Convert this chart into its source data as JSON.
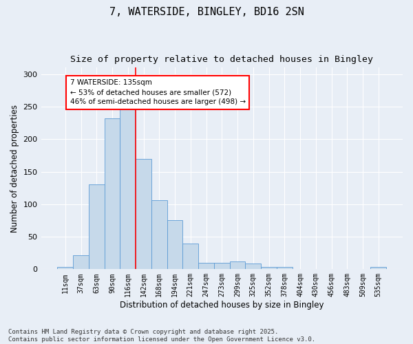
{
  "title1": "7, WATERSIDE, BINGLEY, BD16 2SN",
  "title2": "Size of property relative to detached houses in Bingley",
  "xlabel": "Distribution of detached houses by size in Bingley",
  "ylabel": "Number of detached properties",
  "categories": [
    "11sqm",
    "37sqm",
    "63sqm",
    "90sqm",
    "116sqm",
    "142sqm",
    "168sqm",
    "194sqm",
    "221sqm",
    "247sqm",
    "273sqm",
    "299sqm",
    "325sqm",
    "352sqm",
    "378sqm",
    "404sqm",
    "430sqm",
    "456sqm",
    "483sqm",
    "509sqm",
    "535sqm"
  ],
  "values": [
    4,
    21,
    130,
    232,
    253,
    170,
    106,
    76,
    40,
    10,
    10,
    12,
    9,
    4,
    4,
    0,
    0,
    0,
    0,
    0,
    4
  ],
  "bar_color": "#c6d9ea",
  "bar_edge_color": "#5b9bd5",
  "vline_x": 4.5,
  "vline_color": "red",
  "annotation_text": "7 WATERSIDE: 135sqm\n← 53% of detached houses are smaller (572)\n46% of semi-detached houses are larger (498) →",
  "annotation_box_color": "white",
  "annotation_box_edge_color": "red",
  "ylim": [
    0,
    310
  ],
  "yticks": [
    0,
    50,
    100,
    150,
    200,
    250,
    300
  ],
  "bg_color": "#e8eef6",
  "footer1": "Contains HM Land Registry data © Crown copyright and database right 2025.",
  "footer2": "Contains public sector information licensed under the Open Government Licence v3.0.",
  "title_fontsize": 11,
  "subtitle_fontsize": 9.5,
  "axis_fontsize": 8.5,
  "tick_fontsize": 7,
  "footer_fontsize": 6.5,
  "ann_fontsize": 7.5
}
